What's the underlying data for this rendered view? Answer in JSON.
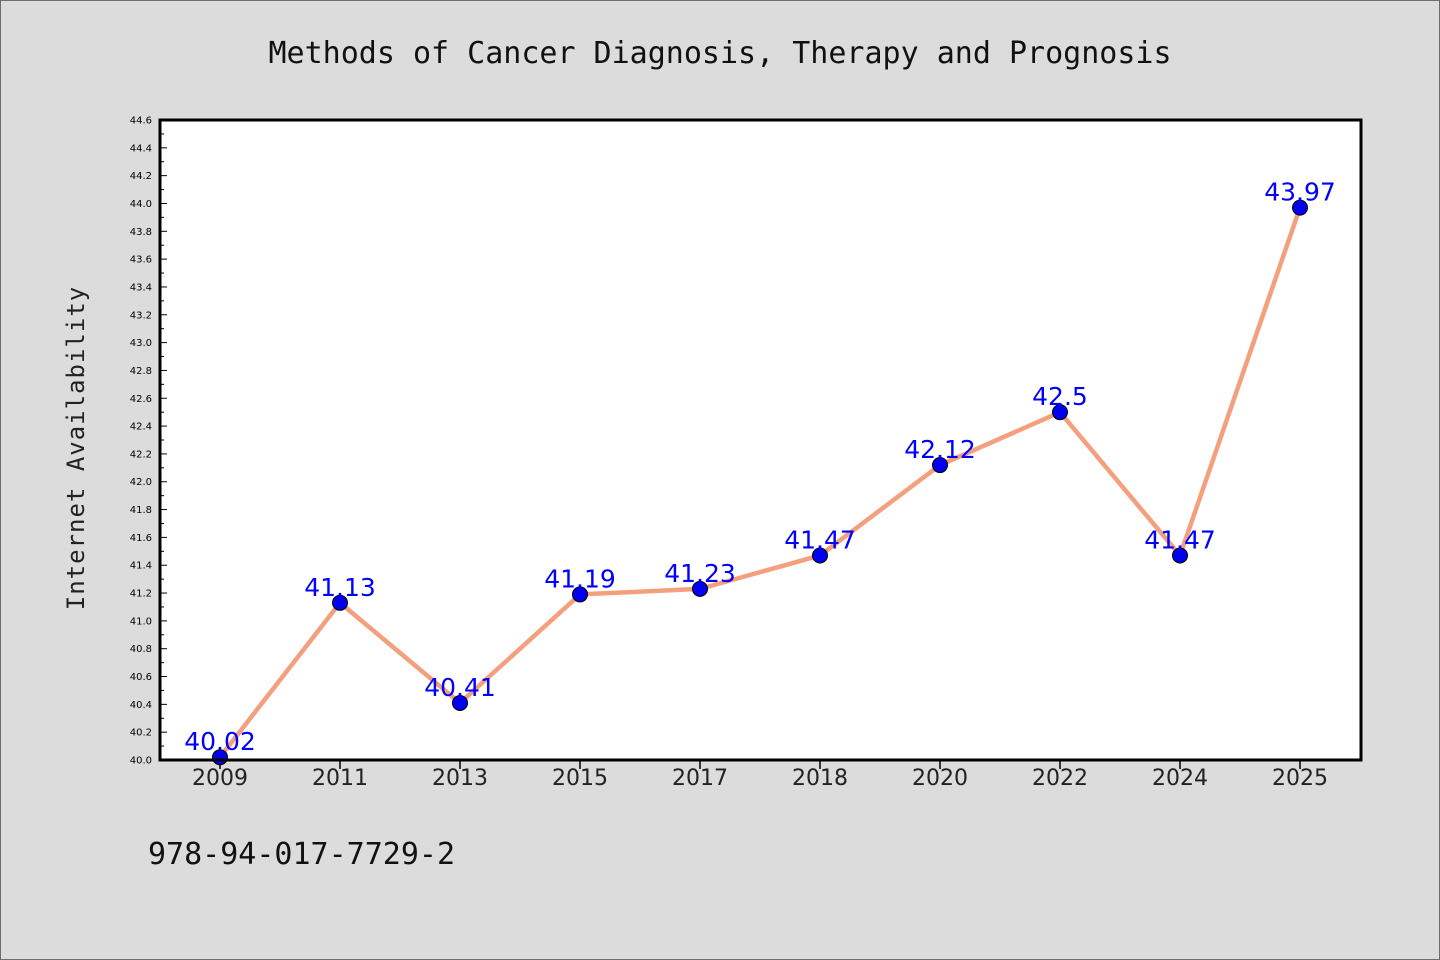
{
  "chart_data": {
    "type": "line",
    "title": "Methods of Cancer Diagnosis, Therapy and Prognosis",
    "xlabel": "",
    "ylabel": "Internet Availability",
    "categories": [
      "2009",
      "2011",
      "2013",
      "2015",
      "2017",
      "2018",
      "2020",
      "2022",
      "2024",
      "2025"
    ],
    "values": [
      40.02,
      41.13,
      40.41,
      41.19,
      41.23,
      41.47,
      42.12,
      42.5,
      41.47,
      43.97
    ],
    "data_labels": [
      "40.02",
      "41.13",
      "40.41",
      "41.19",
      "41.23",
      "41.47",
      "42.12",
      "42.5",
      "41.47",
      "43.97"
    ],
    "ylim": [
      40.0,
      44.6
    ],
    "yticks": [
      "40.0",
      "40.2",
      "40.4",
      "40.6",
      "40.8",
      "41.0",
      "41.2",
      "41.4",
      "41.6",
      "41.8",
      "42.0",
      "42.2",
      "42.4",
      "42.6",
      "42.8",
      "43.0",
      "43.2",
      "43.4",
      "43.6",
      "43.8",
      "44.0",
      "44.2",
      "44.4",
      "44.6"
    ],
    "grid": false,
    "line_color": "#f4a07e",
    "marker_color": "#0000ee",
    "label_color": "#0000ff",
    "background_color": "#dcdcdc",
    "plot_background": "#ffffff"
  },
  "footer": {
    "isbn": "978-94-017-7729-2"
  }
}
